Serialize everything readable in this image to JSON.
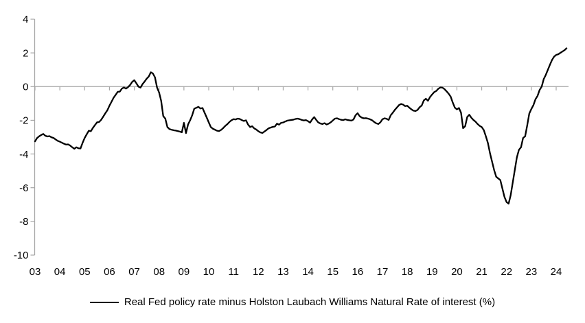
{
  "chart_data": {
    "type": "line",
    "title": "",
    "legend": "Real Fed policy rate minus Holston Laubach Williams Natural Rate of interest (%)",
    "legend_position": "bottom-center",
    "x_start_year": 2003,
    "points_per_year": 12,
    "x_tick_labels": [
      "03",
      "04",
      "05",
      "06",
      "07",
      "08",
      "09",
      "10",
      "11",
      "12",
      "13",
      "14",
      "15",
      "16",
      "17",
      "18",
      "19",
      "20",
      "21",
      "22",
      "23",
      "24"
    ],
    "y_ticks": [
      4,
      2,
      0,
      -2,
      -4,
      -6,
      -8,
      -10
    ],
    "ylim": [
      -10,
      4
    ],
    "grid": "zero-line-only",
    "colors": {
      "series": "#000000",
      "axis": "#a6a6a6",
      "text": "#000000",
      "background": "#ffffff"
    },
    "values": [
      -3.25,
      -3.05,
      -2.95,
      -2.87,
      -2.81,
      -2.92,
      -2.96,
      -2.94,
      -3.01,
      -3.05,
      -3.14,
      -3.22,
      -3.27,
      -3.33,
      -3.39,
      -3.44,
      -3.43,
      -3.5,
      -3.6,
      -3.69,
      -3.6,
      -3.66,
      -3.67,
      -3.34,
      -3.05,
      -2.83,
      -2.62,
      -2.65,
      -2.45,
      -2.28,
      -2.12,
      -2.1,
      -1.97,
      -1.78,
      -1.58,
      -1.4,
      -1.13,
      -0.9,
      -0.66,
      -0.49,
      -0.31,
      -0.3,
      -0.12,
      -0.05,
      -0.12,
      -0.03,
      0.1,
      0.28,
      0.38,
      0.2,
      0.0,
      -0.06,
      0.15,
      0.3,
      0.47,
      0.6,
      0.85,
      0.78,
      0.55,
      -0.05,
      -0.35,
      -0.85,
      -1.75,
      -1.9,
      -2.4,
      -2.52,
      -2.56,
      -2.59,
      -2.61,
      -2.64,
      -2.67,
      -2.71,
      -2.15,
      -2.76,
      -2.25,
      -2.0,
      -1.7,
      -1.31,
      -1.26,
      -1.2,
      -1.3,
      -1.27,
      -1.55,
      -1.83,
      -2.12,
      -2.4,
      -2.5,
      -2.56,
      -2.62,
      -2.64,
      -2.57,
      -2.46,
      -2.33,
      -2.23,
      -2.1,
      -2.0,
      -1.93,
      -1.95,
      -1.9,
      -1.92,
      -1.99,
      -2.04,
      -2.0,
      -2.25,
      -2.4,
      -2.35,
      -2.48,
      -2.55,
      -2.65,
      -2.72,
      -2.75,
      -2.66,
      -2.57,
      -2.47,
      -2.43,
      -2.39,
      -2.37,
      -2.2,
      -2.26,
      -2.15,
      -2.13,
      -2.07,
      -2.02,
      -2.0,
      -1.98,
      -1.96,
      -1.92,
      -1.9,
      -1.93,
      -1.98,
      -2.01,
      -1.99,
      -2.05,
      -2.14,
      -1.95,
      -1.81,
      -1.98,
      -2.13,
      -2.19,
      -2.22,
      -2.17,
      -2.25,
      -2.2,
      -2.12,
      -2.01,
      -1.9,
      -1.88,
      -1.93,
      -1.97,
      -1.99,
      -1.94,
      -1.98,
      -2.0,
      -2.02,
      -1.95,
      -1.7,
      -1.58,
      -1.76,
      -1.84,
      -1.88,
      -1.87,
      -1.9,
      -1.94,
      -2.0,
      -2.1,
      -2.18,
      -2.22,
      -2.12,
      -1.94,
      -1.88,
      -1.91,
      -1.98,
      -1.7,
      -1.55,
      -1.38,
      -1.24,
      -1.1,
      -1.03,
      -1.07,
      -1.16,
      -1.14,
      -1.25,
      -1.35,
      -1.43,
      -1.45,
      -1.38,
      -1.22,
      -1.12,
      -0.82,
      -0.72,
      -0.84,
      -0.62,
      -0.47,
      -0.33,
      -0.26,
      -0.13,
      -0.05,
      -0.06,
      -0.15,
      -0.28,
      -0.42,
      -0.6,
      -0.95,
      -1.25,
      -1.35,
      -1.27,
      -1.55,
      -2.47,
      -2.35,
      -1.8,
      -1.67,
      -1.85,
      -1.98,
      -2.08,
      -2.22,
      -2.33,
      -2.4,
      -2.58,
      -2.95,
      -3.35,
      -3.95,
      -4.45,
      -4.95,
      -5.35,
      -5.45,
      -5.55,
      -6.05,
      -6.55,
      -6.85,
      -6.95,
      -6.45,
      -5.7,
      -4.95,
      -4.2,
      -3.75,
      -3.6,
      -3.05,
      -2.95,
      -2.3,
      -1.6,
      -1.33,
      -1.1,
      -0.75,
      -0.55,
      -0.2,
      0.0,
      0.45,
      0.7,
      1.0,
      1.3,
      1.58,
      1.78,
      1.88,
      1.92,
      2.0,
      2.08,
      2.16,
      2.27
    ]
  }
}
